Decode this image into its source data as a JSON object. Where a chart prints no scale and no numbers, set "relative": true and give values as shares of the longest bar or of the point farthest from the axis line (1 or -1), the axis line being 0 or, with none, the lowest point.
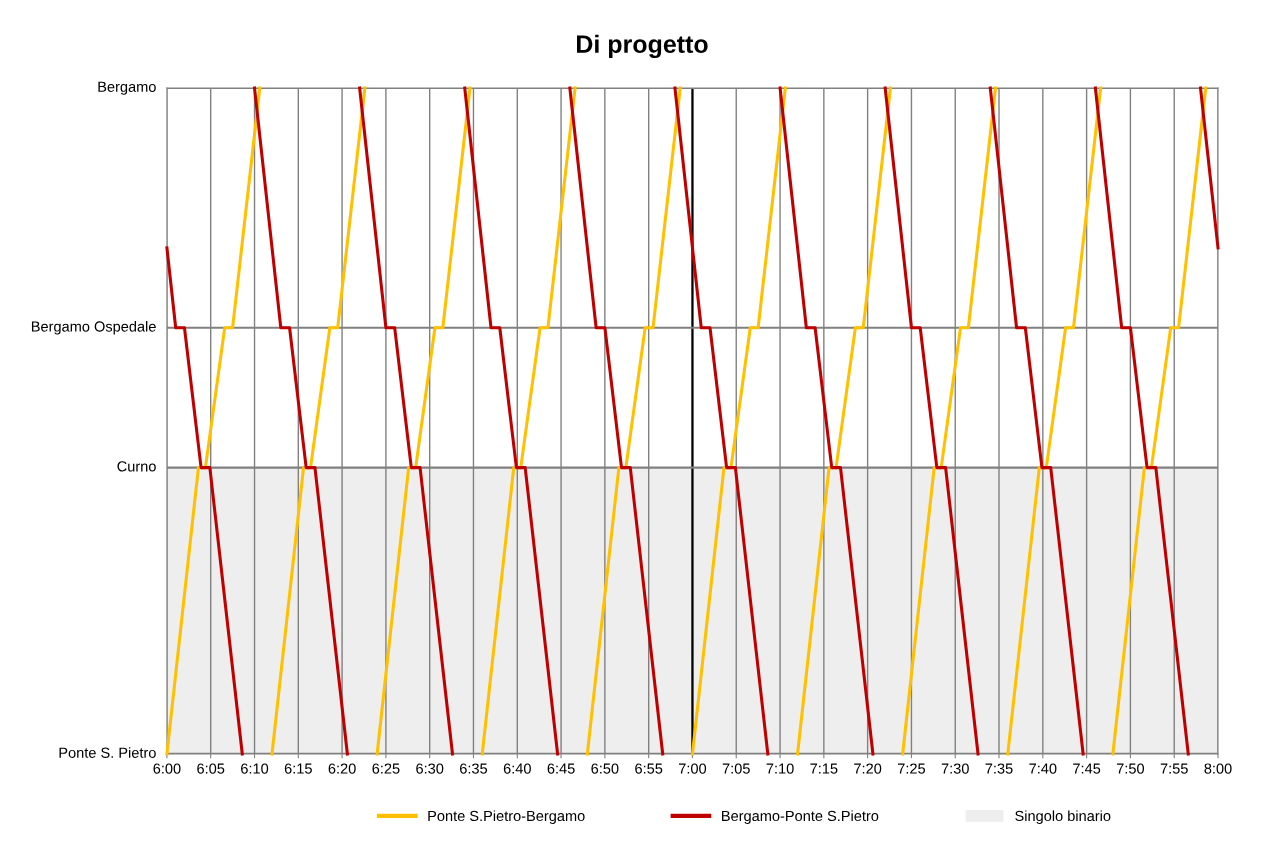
{
  "chart_data": {
    "type": "line",
    "title": "Di progetto",
    "xlim": [
      6,
      8
    ],
    "xticks": [
      {
        "value": 6,
        "label": "6:00"
      },
      {
        "value": 6.0833,
        "label": "6:05"
      },
      {
        "value": 6.1667,
        "label": "6:10"
      },
      {
        "value": 6.25,
        "label": "6:15"
      },
      {
        "value": 6.3333,
        "label": "6:20"
      },
      {
        "value": 6.4167,
        "label": "6:25"
      },
      {
        "value": 6.5,
        "label": "6:30"
      },
      {
        "value": 6.5833,
        "label": "6:35"
      },
      {
        "value": 6.6667,
        "label": "6:40"
      },
      {
        "value": 6.75,
        "label": "6:45"
      },
      {
        "value": 6.8333,
        "label": "6:50"
      },
      {
        "value": 6.9167,
        "label": "6:55"
      },
      {
        "value": 7,
        "label": "7:00"
      },
      {
        "value": 7.0833,
        "label": "7:05"
      },
      {
        "value": 7.1667,
        "label": "7:10"
      },
      {
        "value": 7.25,
        "label": "7:15"
      },
      {
        "value": 7.3333,
        "label": "7:20"
      },
      {
        "value": 7.4167,
        "label": "7:25"
      },
      {
        "value": 7.5,
        "label": "7:30"
      },
      {
        "value": 7.5833,
        "label": "7:35"
      },
      {
        "value": 7.6667,
        "label": "7:40"
      },
      {
        "value": 7.75,
        "label": "7:45"
      },
      {
        "value": 7.8333,
        "label": "7:50"
      },
      {
        "value": 7.9167,
        "label": "7:55"
      },
      {
        "value": 8,
        "label": "8:00"
      }
    ],
    "relative": true,
    "grid": "x",
    "legend": "bottom",
    "marker": "none",
    "line_style": "solid",
    "ref_lines": [
      {
        "axis": "x",
        "value": 7,
        "color": "#000000"
      },
      {
        "axis": "y",
        "value": 0,
        "label": "Ponte S. Pietro",
        "color": "#808080"
      },
      {
        "axis": "y",
        "value": 0.43,
        "label": "Curno",
        "color": "#808080"
      },
      {
        "axis": "y",
        "value": 0.64,
        "label": "Bergamo Ospedale",
        "color": "#808080"
      },
      {
        "axis": "y",
        "value": 1,
        "label": "Bergamo",
        "color": "#808080"
      }
    ],
    "bands": [
      {
        "axis": "y",
        "from": 0,
        "to": 0.43,
        "label": "Singolo binario",
        "color": "#eeeeee"
      }
    ],
    "series": [
      {
        "name": "Ponte S.Pietro-Bergamo",
        "color": "#ffc000",
        "x": [
          6.0,
          6.06,
          6.0733,
          6.11,
          6.125,
          6.1767,
          null,
          6.2,
          6.26,
          6.2733,
          6.31,
          6.325,
          6.3767,
          null,
          6.4,
          6.46,
          6.4733,
          6.51,
          6.525,
          6.5767,
          null,
          6.6,
          6.66,
          6.6733,
          6.71,
          6.725,
          6.7767,
          null,
          6.8,
          6.86,
          6.8733,
          6.91,
          6.925,
          6.9767,
          null,
          7.0,
          7.06,
          7.0733,
          7.11,
          7.125,
          7.1767,
          null,
          7.2,
          7.26,
          7.2733,
          7.31,
          7.325,
          7.3767,
          null,
          7.4,
          7.46,
          7.4733,
          7.51,
          7.525,
          7.5767,
          null,
          7.6,
          7.66,
          7.6733,
          7.71,
          7.725,
          7.7767,
          null,
          7.8,
          7.86,
          7.8733,
          7.91,
          7.925,
          7.9767
        ],
        "values": [
          0,
          0.43,
          0.43,
          0.64,
          0.64,
          1,
          null,
          0,
          0.43,
          0.43,
          0.64,
          0.64,
          1,
          null,
          0,
          0.43,
          0.43,
          0.64,
          0.64,
          1,
          null,
          0,
          0.43,
          0.43,
          0.64,
          0.64,
          1,
          null,
          0,
          0.43,
          0.43,
          0.64,
          0.64,
          1,
          null,
          0,
          0.43,
          0.43,
          0.64,
          0.64,
          1,
          null,
          0,
          0.43,
          0.43,
          0.64,
          0.64,
          1,
          null,
          0,
          0.43,
          0.43,
          0.64,
          0.64,
          1,
          null,
          0,
          0.43,
          0.43,
          0.64,
          0.64,
          1,
          null,
          0,
          0.43,
          0.43,
          0.64,
          0.64,
          1
        ]
      },
      {
        "name": "Bergamo-Ponte S.Pietro",
        "color": "#c00000",
        "x": [
          6.0,
          6.0167,
          6.0334,
          6.065,
          6.0817,
          6.1434,
          null,
          6.1667,
          6.2167,
          6.2334,
          6.265,
          6.2817,
          6.3434,
          null,
          6.3667,
          6.4167,
          6.4334,
          6.465,
          6.4817,
          6.5434,
          null,
          6.5667,
          6.6167,
          6.6334,
          6.665,
          6.6817,
          6.7434,
          null,
          6.7667,
          6.8167,
          6.8334,
          6.865,
          6.8817,
          6.9434,
          null,
          6.9667,
          7.0167,
          7.0334,
          7.065,
          7.0817,
          7.1434,
          null,
          7.1667,
          7.2167,
          7.2334,
          7.265,
          7.2817,
          7.3434,
          null,
          7.3667,
          7.4167,
          7.4334,
          7.465,
          7.4817,
          7.5434,
          null,
          7.5667,
          7.6167,
          7.6334,
          7.665,
          7.6817,
          7.7434,
          null,
          7.7667,
          7.8167,
          7.8334,
          7.865,
          7.8817,
          7.9434,
          null,
          7.9667,
          8.0
        ],
        "values": [
          0.76,
          0.64,
          0.64,
          0.43,
          0.43,
          0,
          null,
          1,
          0.64,
          0.64,
          0.43,
          0.43,
          0,
          null,
          1,
          0.64,
          0.64,
          0.43,
          0.43,
          0,
          null,
          1,
          0.64,
          0.64,
          0.43,
          0.43,
          0,
          null,
          1,
          0.64,
          0.64,
          0.43,
          0.43,
          0,
          null,
          1,
          0.64,
          0.64,
          0.43,
          0.43,
          0,
          null,
          1,
          0.64,
          0.64,
          0.43,
          0.43,
          0,
          null,
          1,
          0.64,
          0.64,
          0.43,
          0.43,
          0,
          null,
          1,
          0.64,
          0.64,
          0.43,
          0.43,
          0,
          null,
          1,
          0.64,
          0.64,
          0.43,
          0.43,
          0,
          null,
          1,
          0.76
        ]
      }
    ]
  }
}
